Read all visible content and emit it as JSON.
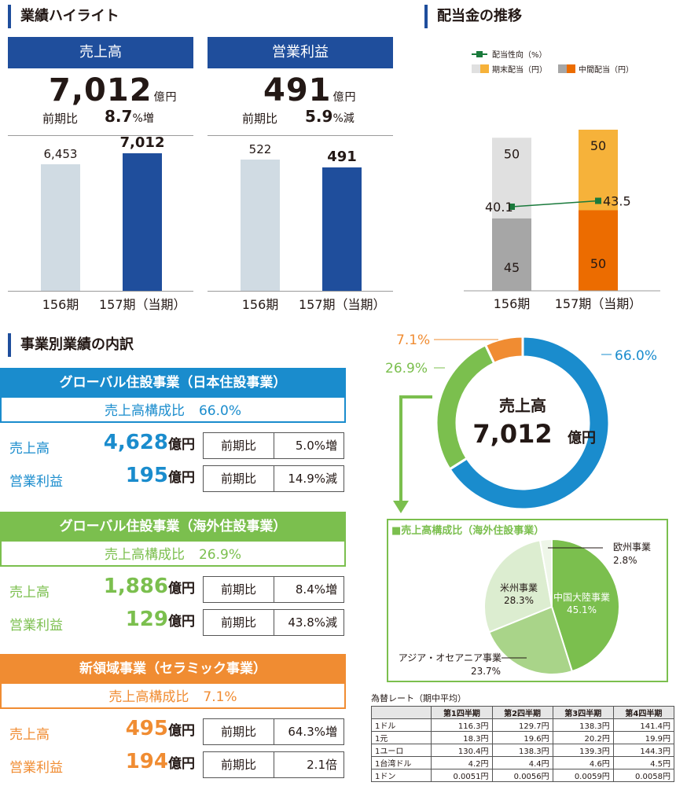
{
  "highlights": {
    "title": "業績ハイライト",
    "sales": {
      "header": "売上高",
      "value": "7,012",
      "unit": "億円",
      "yoy_label": "前期比",
      "yoy_value": "8.7",
      "yoy_unit": "%増",
      "bars": [
        {
          "period": "156期",
          "value": 6453,
          "label": "6,453",
          "color": "#d0dbe3"
        },
        {
          "period": "157期（当期）",
          "value": 7012,
          "label": "7,012",
          "color": "#1f4e9c"
        }
      ]
    },
    "profit": {
      "header": "営業利益",
      "value": "491",
      "unit": "億円",
      "yoy_label": "前期比",
      "yoy_value": "5.9",
      "yoy_unit": "%減",
      "bars": [
        {
          "period": "156期",
          "value": 522,
          "label": "522",
          "color": "#d0dbe3"
        },
        {
          "period": "157期（当期）",
          "value": 491,
          "label": "491",
          "color": "#1f4e9c"
        }
      ]
    }
  },
  "dividends": {
    "title": "配当金の推移",
    "legend": {
      "payout": "配当性向（%）",
      "final": "期末配当（円）",
      "interim": "中間配当（円）"
    },
    "colors": {
      "interim_156": "#a6a6a6",
      "final_156": "#e0e0e0",
      "interim_157": "#ec6c00",
      "final_157": "#f6b23a",
      "payout_line": "#1a7a3c"
    }
  },
  "segments": {
    "title": "事業別業績の内訳",
    "items": [
      {
        "name": "グローバル住設事業（日本住設事業）",
        "share_label": "売上高構成比",
        "share": "66.0%",
        "color": "#1a8ccd",
        "sales_label": "売上高",
        "sales_value": "4,628",
        "profit_label": "営業利益",
        "profit_value": "195",
        "unit": "億円",
        "yoy_label": "前期比",
        "sales_yoy": "5.0%増",
        "profit_yoy": "14.9%減"
      },
      {
        "name": "グローバル住設事業（海外住設事業）",
        "share_label": "売上高構成比",
        "share": "26.9%",
        "color": "#7bbf4e",
        "sales_label": "売上高",
        "sales_value": "1,886",
        "profit_label": "営業利益",
        "profit_value": "129",
        "unit": "億円",
        "yoy_label": "前期比",
        "sales_yoy": "8.4%増",
        "profit_yoy": "43.8%減"
      },
      {
        "name": "新領域事業（セラミック事業）",
        "share_label": "売上高構成比",
        "share": "7.1%",
        "color": "#f08c32",
        "sales_label": "売上高",
        "sales_value": "495",
        "profit_label": "営業利益",
        "profit_value": "194",
        "unit": "億円",
        "yoy_label": "前期比",
        "sales_yoy": "64.3%増",
        "profit_yoy": "2.1倍"
      }
    ]
  },
  "donut": {
    "center_label": "売上高",
    "center_value": "7,012",
    "center_unit": "億円"
  },
  "overseas": {
    "title": "■売上高構成比（海外住設事業）",
    "colors": [
      "#7bbf4e",
      "#a9d489",
      "#dcedd0",
      "#eef6e8"
    ]
  },
  "fx": {
    "title": "為替レート（期中平均）",
    "headers": [
      "",
      "第1四半期",
      "第2四半期",
      "第3四半期",
      "第4四半期"
    ],
    "rows": [
      [
        "1ドル",
        "116.3円",
        "129.7円",
        "138.3円",
        "141.4円"
      ],
      [
        "1元",
        "18.3円",
        "19.6円",
        "20.2円",
        "19.9円"
      ],
      [
        "1ユーロ",
        "130.4円",
        "138.3円",
        "139.3円",
        "144.3円"
      ],
      [
        "1台湾ドル",
        "4.2円",
        "4.4円",
        "4.6円",
        "4.5円"
      ],
      [
        "1ドン",
        "0.0051円",
        "0.0056円",
        "0.0059円",
        "0.0058円"
      ]
    ]
  },
  "chart_data": [
    {
      "type": "bar",
      "title": "売上高",
      "categories": [
        "156期",
        "157期（当期）"
      ],
      "values": [
        6453,
        7012
      ],
      "unit": "億円"
    },
    {
      "type": "bar",
      "title": "営業利益",
      "categories": [
        "156期",
        "157期（当期）"
      ],
      "values": [
        522,
        491
      ],
      "unit": "億円"
    },
    {
      "type": "bar",
      "title": "配当金の推移",
      "stacked": true,
      "categories": [
        "156期",
        "157期（当期）"
      ],
      "series": [
        {
          "name": "中間配当（円）",
          "values": [
            45,
            50
          ]
        },
        {
          "name": "期末配当（円）",
          "values": [
            50,
            50
          ]
        }
      ],
      "line_series": {
        "name": "配当性向（%）",
        "values": [
          40.1,
          43.5
        ]
      }
    },
    {
      "type": "pie",
      "title": "売上高",
      "labels": [
        "日本住設事業",
        "海外住設事業",
        "セラミック事業"
      ],
      "values": [
        66.0,
        26.9,
        7.1
      ],
      "display": [
        "66.0%",
        "26.9%",
        "7.1%"
      ]
    },
    {
      "type": "pie",
      "title": "売上高構成比（海外住設事業）",
      "labels": [
        "中国大陸事業",
        "アジア・オセアニア事業",
        "米州事業",
        "欧州事業"
      ],
      "values": [
        45.1,
        23.7,
        28.3,
        2.8
      ],
      "display": [
        "45.1%",
        "23.7%",
        "28.3%",
        "2.8%"
      ]
    }
  ]
}
